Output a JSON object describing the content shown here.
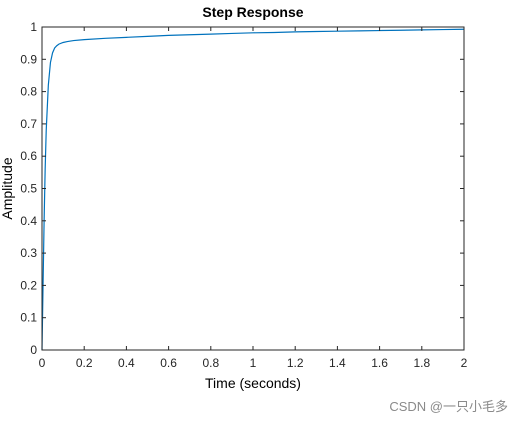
{
  "chart_data": {
    "type": "line",
    "title": "Step Response",
    "xlabel": "Time (seconds)",
    "ylabel": "Amplitude",
    "xlim": [
      0,
      2
    ],
    "ylim": [
      0,
      1
    ],
    "xticks": [
      "0",
      "0.2",
      "0.4",
      "0.6",
      "0.8",
      "1",
      "1.2",
      "1.4",
      "1.6",
      "1.8",
      "2"
    ],
    "yticks": [
      "0",
      "0.1",
      "0.2",
      "0.3",
      "0.4",
      "0.5",
      "0.6",
      "0.7",
      "0.8",
      "0.9",
      "1"
    ],
    "grid": false,
    "reference_line": {
      "y": 1,
      "style": "dotted"
    },
    "series": [
      {
        "color": "#0072BD",
        "x": [
          0,
          0.005,
          0.01,
          0.015,
          0.02,
          0.03,
          0.04,
          0.05,
          0.06,
          0.07,
          0.08,
          0.1,
          0.12,
          0.15,
          0.2,
          0.3,
          0.4,
          0.5,
          0.6,
          0.7,
          0.8,
          0.9,
          1.0,
          1.1,
          1.2,
          1.3,
          1.4,
          1.5,
          1.6,
          1.7,
          1.8,
          1.9,
          2.0
        ],
        "y": [
          0,
          0.2,
          0.4,
          0.56,
          0.68,
          0.82,
          0.89,
          0.92,
          0.935,
          0.942,
          0.947,
          0.952,
          0.955,
          0.958,
          0.961,
          0.965,
          0.968,
          0.971,
          0.974,
          0.976,
          0.978,
          0.98,
          0.982,
          0.983,
          0.985,
          0.986,
          0.987,
          0.988,
          0.989,
          0.99,
          0.991,
          0.992,
          0.993
        ]
      }
    ]
  },
  "watermark": "CSDN @一只小毛多"
}
